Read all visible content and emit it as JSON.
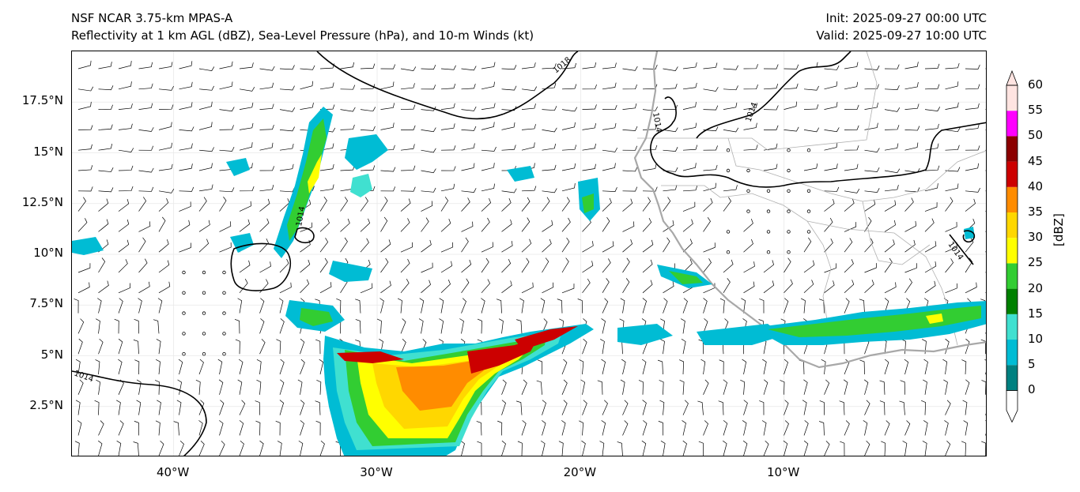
{
  "header": {
    "model": "NSF NCAR 3.75-km MPAS-A",
    "fields": "Reflectivity at 1 km AGL (dBZ), Sea-Level Pressure (hPa), and 10-m Winds (kt)",
    "init": "Init: 2025-09-27 00:00 UTC",
    "valid": "Valid: 2025-09-27 10:00 UTC"
  },
  "axes": {
    "lat_labels": [
      "17.5°N",
      "15°N",
      "12.5°N",
      "10°N",
      "7.5°N",
      "5°N",
      "2.5°N"
    ],
    "lat_values": [
      17.5,
      15,
      12.5,
      10,
      7.5,
      5,
      2.5
    ],
    "lon_labels": [
      "40°W",
      "30°W",
      "20°W",
      "10°W"
    ],
    "lon_values": [
      -40,
      -30,
      -20,
      -10
    ],
    "lon_range": [
      -45,
      0
    ],
    "lat_range": [
      0,
      20
    ]
  },
  "contours": {
    "isobar_labels": [
      "1018",
      "1014",
      "1014",
      "1014",
      "1014",
      "1014"
    ]
  },
  "colorbar": {
    "title": "[dBZ]",
    "ticks": [
      "0",
      "5",
      "10",
      "15",
      "20",
      "25",
      "30",
      "35",
      "40",
      "45",
      "50",
      "55",
      "60"
    ],
    "colors": [
      "#008080",
      "#00bcd4",
      "#40e0d0",
      "#008000",
      "#32cd32",
      "#ffff00",
      "#ffd700",
      "#ff8c00",
      "#cc0000",
      "#8b0000",
      "#ff00ff",
      "#ffe4e1"
    ]
  }
}
